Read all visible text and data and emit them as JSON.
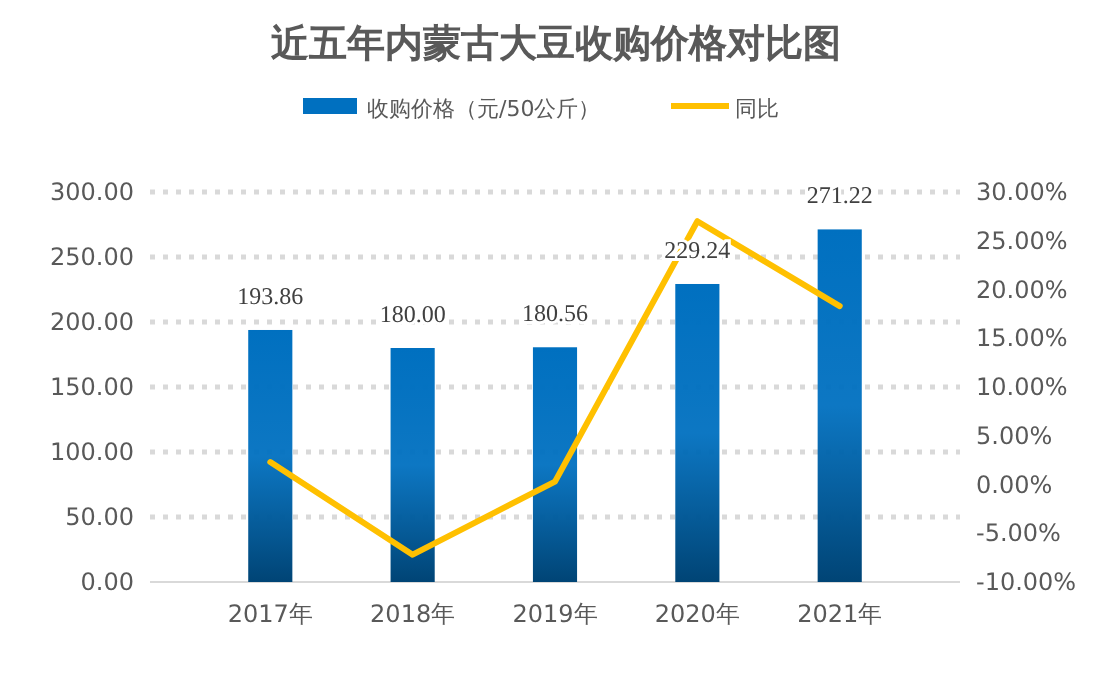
{
  "chart_data": {
    "type": "bar",
    "title": "近五年内蒙古大豆收购价格对比图",
    "categories": [
      "2017年",
      "2018年",
      "2019年",
      "2020年",
      "2021年"
    ],
    "series": [
      {
        "name": "收购价格（元/50公斤）",
        "color": "#0070c0",
        "values": [
          193.86,
          180.0,
          180.56,
          229.24,
          271.22
        ],
        "value_labels": [
          "193.86",
          "180.00",
          "180.56",
          "229.24",
          "271.22"
        ]
      },
      {
        "name": "同比",
        "type": "line",
        "axis": "y2",
        "color": "#ffc000",
        "values": [
          2.3,
          -7.2,
          0.3,
          27.0,
          18.3
        ]
      }
    ],
    "ylim": [
      0,
      300
    ],
    "yticks": [
      {
        "value": 0,
        "label": "0.00"
      },
      {
        "value": 50,
        "label": "50.00"
      },
      {
        "value": 100,
        "label": "100.00"
      },
      {
        "value": 150,
        "label": "150.00"
      },
      {
        "value": 200,
        "label": "200.00"
      },
      {
        "value": 250,
        "label": "250.00"
      },
      {
        "value": 300,
        "label": "300.00"
      }
    ],
    "y2lim": [
      -10,
      30
    ],
    "y2ticks": [
      {
        "value": -10,
        "label": "-10.00%"
      },
      {
        "value": -5,
        "label": "-5.00%"
      },
      {
        "value": 0,
        "label": "0.00%"
      },
      {
        "value": 5,
        "label": "5.00%"
      },
      {
        "value": 10,
        "label": "10.00%"
      },
      {
        "value": 15,
        "label": "15.00%"
      },
      {
        "value": 20,
        "label": "20.00%"
      },
      {
        "value": 25,
        "label": "25.00%"
      },
      {
        "value": 30,
        "label": "30.00%"
      }
    ],
    "grid": "y",
    "legend": "top",
    "marker": "none"
  }
}
